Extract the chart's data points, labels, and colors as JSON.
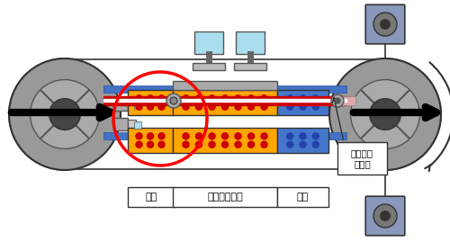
{
  "bg_color": "#ffffff",
  "orange_color": "#FFA500",
  "red_dot_color": "#CC0000",
  "blue_block_color": "#4477CC",
  "blue_dot_color": "#2244AA",
  "belt_color": "#4472c4",
  "red_belt_color": "#CC0000",
  "gray_wheel": "#888888",
  "gray_dark": "#555555",
  "gray_light": "#BBBBBB",
  "gray_mid": "#999999",
  "pink_color": "#DDAAAA",
  "cyan_monitor": "#AADDEE",
  "label_yonetsu": "予熱",
  "label_kanetsu": "加熱、プレス",
  "label_reikyaku": "冷却",
  "label_steel_belt": "スチール\nベルト",
  "fig_width": 5.0,
  "fig_height": 2.69,
  "dpi": 100
}
